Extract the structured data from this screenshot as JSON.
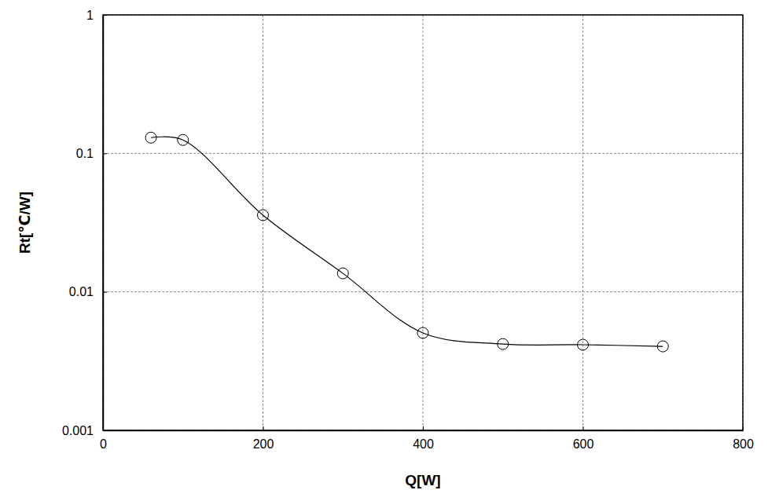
{
  "chart_data": {
    "type": "line",
    "x_label": "Q[W]",
    "y_label": "Rt[℃/W]",
    "x": [
      60,
      100,
      200,
      300,
      400,
      500,
      600,
      700
    ],
    "values": [
      0.13,
      0.125,
      0.0358,
      0.0136,
      0.00505,
      0.0042,
      0.00415,
      0.00404
    ],
    "color": "#000000",
    "marker": "circle",
    "line_style": "solid",
    "log": "y",
    "grid": true,
    "xlim": [
      0,
      800
    ],
    "xticks": [
      0,
      200,
      400,
      600,
      800
    ],
    "ylim": [
      0.001,
      1
    ],
    "yticks": [
      0.001,
      0.01,
      0.1,
      1
    ]
  }
}
